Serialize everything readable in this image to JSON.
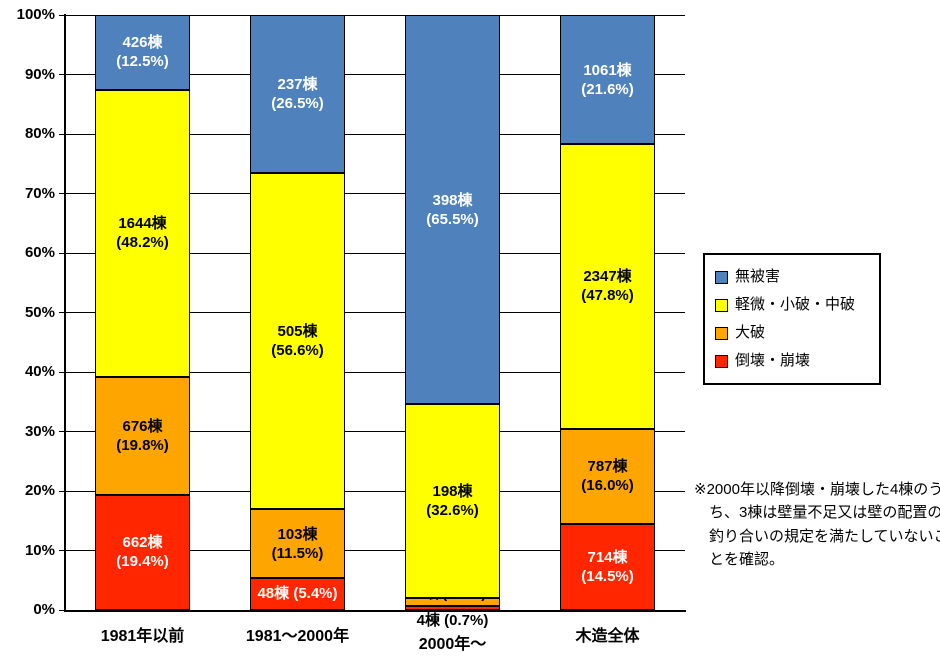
{
  "chart_data": {
    "type": "bar",
    "subtype": "stacked-100-percent",
    "title": "",
    "xlabel": "",
    "ylabel": "",
    "ylim": [
      0,
      100
    ],
    "unit": "棟",
    "y_ticks": [
      "0%",
      "10%",
      "20%",
      "30%",
      "40%",
      "50%",
      "60%",
      "70%",
      "80%",
      "90%",
      "100%"
    ],
    "categories": [
      "1981年以前",
      "1981～2000年",
      "2000年～",
      "木造全体"
    ],
    "legend_position": "right",
    "series": [
      {
        "name": "倒壊・崩壊",
        "color": "#ff2600",
        "text_color": "#ffffff",
        "counts": [
          662,
          48,
          4,
          714
        ],
        "pct": [
          19.4,
          5.4,
          0.7,
          14.5
        ],
        "labels": [
          {
            "lines": [
              "662棟",
              "(19.4%)"
            ],
            "pos": "center"
          },
          {
            "lines": [
              "48棟 (5.4%)"
            ],
            "pos": "center"
          },
          {
            "lines": [
              "4棟 (0.7%)"
            ],
            "pos": "below-axis"
          },
          {
            "lines": [
              "714棟",
              "(14.5%)"
            ],
            "pos": "center"
          }
        ]
      },
      {
        "name": "大破",
        "color": "#ffa500",
        "text_color": "#000000",
        "counts": [
          676,
          103,
          8,
          787
        ],
        "pct": [
          19.8,
          11.5,
          1.3,
          16.0
        ],
        "labels": [
          {
            "lines": [
              "676棟",
              "(19.8%)"
            ],
            "pos": "center"
          },
          {
            "lines": [
              "103棟",
              "(11.5%)"
            ],
            "pos": "center"
          },
          {
            "lines": [
              "8棟(1.3%)"
            ],
            "pos": "above"
          },
          {
            "lines": [
              "787棟",
              "(16.0%)"
            ],
            "pos": "center"
          }
        ]
      },
      {
        "name": "軽微・小破・中破",
        "color": "#ffff00",
        "text_color": "#000000",
        "counts": [
          1644,
          505,
          198,
          2347
        ],
        "pct": [
          48.2,
          56.6,
          32.6,
          47.8
        ],
        "labels": [
          {
            "lines": [
              "1644棟",
              "(48.2%)"
            ],
            "pos": "center"
          },
          {
            "lines": [
              "505棟",
              "(56.6%)"
            ],
            "pos": "center"
          },
          {
            "lines": [
              "198棟",
              "(32.6%)"
            ],
            "pos": "center"
          },
          {
            "lines": [
              "2347棟",
              "(47.8%)"
            ],
            "pos": "center"
          }
        ]
      },
      {
        "name": "無被害",
        "color": "#4f81bd",
        "text_color": "#ffffff",
        "counts": [
          426,
          237,
          398,
          1061
        ],
        "pct": [
          12.5,
          26.5,
          65.5,
          21.6
        ],
        "labels": [
          {
            "lines": [
              "426棟",
              "(12.5%)"
            ],
            "pos": "center"
          },
          {
            "lines": [
              "237棟",
              "(26.5%)"
            ],
            "pos": "center"
          },
          {
            "lines": [
              "398棟",
              "(65.5%)"
            ],
            "pos": "center"
          },
          {
            "lines": [
              "1061棟",
              "(21.6%)"
            ],
            "pos": "center"
          }
        ]
      }
    ]
  },
  "footnote": "※2000年以降倒壊・崩壊した4棟のうち、3棟は壁量不足又は壁の配置の釣り合いの規定を満たしていないことを確認。"
}
